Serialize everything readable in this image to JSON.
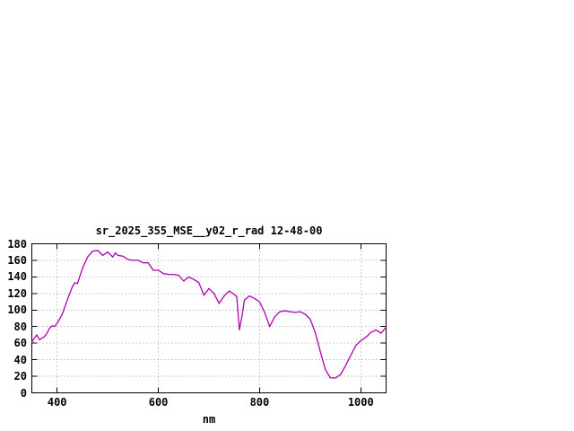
{
  "window": {
    "background": "#ffffff",
    "text_color": "#000000"
  },
  "chart_data": {
    "type": "line",
    "title": "sr_2025_355_MSE__y02_r_rad 12-48-00",
    "xlabel": "nm",
    "ylabel": "",
    "xlim": [
      350,
      1050
    ],
    "ylim": [
      0,
      180
    ],
    "xticks": [
      400,
      600,
      800,
      1000
    ],
    "ytick_step": 20,
    "yticks": [
      0,
      20,
      40,
      60,
      80,
      100,
      120,
      140,
      160,
      180
    ],
    "grid": true,
    "legend": "none",
    "line_color": "#b000b0",
    "grid_color": "#9a9a9a",
    "x": [
      350,
      355,
      360,
      365,
      370,
      375,
      380,
      385,
      390,
      395,
      400,
      410,
      420,
      430,
      435,
      440,
      450,
      460,
      470,
      480,
      490,
      500,
      510,
      515,
      520,
      530,
      540,
      550,
      560,
      570,
      580,
      590,
      600,
      610,
      620,
      630,
      640,
      650,
      660,
      670,
      680,
      690,
      700,
      710,
      720,
      730,
      740,
      750,
      755,
      760,
      765,
      770,
      780,
      790,
      800,
      810,
      820,
      830,
      840,
      850,
      860,
      870,
      880,
      890,
      900,
      910,
      920,
      930,
      940,
      950,
      960,
      970,
      980,
      990,
      1000,
      1010,
      1020,
      1030,
      1040,
      1050
    ],
    "y": [
      61,
      66,
      70,
      64,
      66,
      68,
      72,
      78,
      81,
      80,
      84,
      95,
      112,
      128,
      133,
      132,
      150,
      164,
      171,
      172,
      166,
      170,
      164,
      169,
      166,
      165,
      161,
      160,
      160,
      157,
      157,
      148,
      148,
      144,
      143,
      143,
      142,
      135,
      140,
      137,
      133,
      118,
      126,
      120,
      108,
      117,
      123,
      119,
      116,
      76,
      92,
      112,
      117,
      114,
      110,
      97,
      80,
      92,
      98,
      99,
      98,
      97,
      98,
      95,
      89,
      73,
      50,
      28,
      18,
      18,
      22,
      33,
      45,
      57,
      63,
      67,
      73,
      76,
      72,
      79
    ]
  }
}
